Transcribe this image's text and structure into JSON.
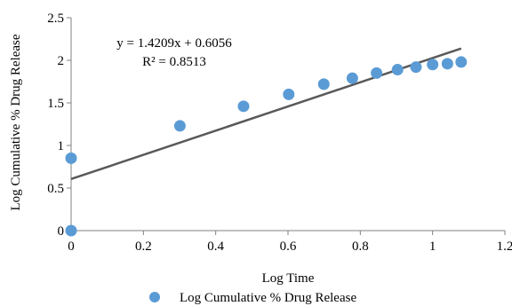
{
  "chart_data": {
    "type": "scatter",
    "title": "",
    "xlabel": "Log Time",
    "ylabel": "Log Cumulative % Drug Release",
    "xlim": [
      0,
      1.2
    ],
    "ylim": [
      0,
      2.5
    ],
    "x_ticks": [
      0,
      0.2,
      0.4,
      0.6,
      0.8,
      1,
      1.2
    ],
    "x_tick_labels": [
      "0",
      "0.2",
      "0.4",
      "0.6",
      "0.8",
      "1",
      "1.2"
    ],
    "y_ticks": [
      0,
      0.5,
      1,
      1.5,
      2,
      2.5
    ],
    "y_tick_labels": [
      "0",
      "0.5",
      "1",
      "1.5",
      "2",
      "2.5"
    ],
    "grid": false,
    "legend_position": "bottom",
    "series": [
      {
        "name": "Log Cumulative % Drug Release",
        "color": "#5b9bd5",
        "points": [
          {
            "x": 0,
            "y": 0
          },
          {
            "x": 0,
            "y": 0.85
          },
          {
            "x": 0.301,
            "y": 1.23
          },
          {
            "x": 0.477,
            "y": 1.46
          },
          {
            "x": 0.602,
            "y": 1.6
          },
          {
            "x": 0.699,
            "y": 1.72
          },
          {
            "x": 0.778,
            "y": 1.79
          },
          {
            "x": 0.845,
            "y": 1.85
          },
          {
            "x": 0.903,
            "y": 1.89
          },
          {
            "x": 0.954,
            "y": 1.92
          },
          {
            "x": 1.0,
            "y": 1.95
          },
          {
            "x": 1.041,
            "y": 1.96
          },
          {
            "x": 1.079,
            "y": 1.98
          }
        ]
      }
    ],
    "trendline": {
      "slope": 1.4209,
      "intercept": 0.6056,
      "x_range": [
        0,
        1.079
      ],
      "color": "#595959",
      "equation": "y = 1.4209x + 0.6056",
      "r_squared": "R² = 0.8513"
    }
  }
}
